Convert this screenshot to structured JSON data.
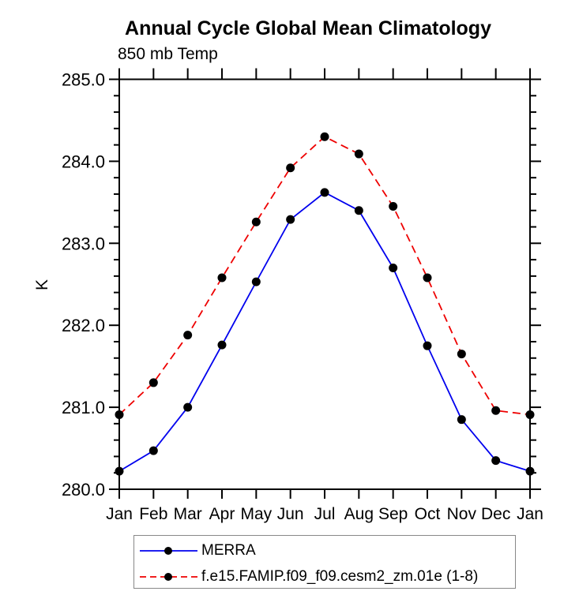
{
  "chart": {
    "title": "Annual Cycle Global Mean Climatology",
    "subtitle": "850 mb Temp",
    "ylabel": "K"
  },
  "chart_data": {
    "type": "line",
    "title": "Annual Cycle Global Mean Climatology",
    "subtitle": "850 mb Temp",
    "xlabel": "",
    "ylabel": "K",
    "categories": [
      "Jan",
      "Feb",
      "Mar",
      "Apr",
      "May",
      "Jun",
      "Jul",
      "Aug",
      "Sep",
      "Oct",
      "Nov",
      "Dec",
      "Jan"
    ],
    "ylim": [
      280.0,
      285.0
    ],
    "ytick_labels": [
      "280.0",
      "281.0",
      "282.0",
      "283.0",
      "284.0",
      "285.0"
    ],
    "ytick_values": [
      280.0,
      281.0,
      282.0,
      283.0,
      284.0,
      285.0
    ],
    "ytick_minor_step": 0.2,
    "grid": false,
    "legend_position": "bottom",
    "axis_color": "#000000",
    "marker_color": "#000000",
    "series": [
      {
        "name": "MERRA",
        "color": "#0000ee",
        "style": "solid",
        "marker": "circle",
        "values": [
          280.22,
          280.47,
          281.0,
          281.76,
          282.53,
          283.29,
          283.62,
          283.4,
          282.7,
          281.75,
          280.85,
          280.35,
          280.22
        ]
      },
      {
        "name": "f.e15.FAMIP.f09_f09.cesm2_zm.01e (1-8)",
        "color": "#ee0000",
        "style": "dashed",
        "marker": "circle",
        "values": [
          280.91,
          281.3,
          281.88,
          282.58,
          283.26,
          283.92,
          284.3,
          284.09,
          283.45,
          282.58,
          281.65,
          280.96,
          280.91
        ]
      }
    ]
  }
}
